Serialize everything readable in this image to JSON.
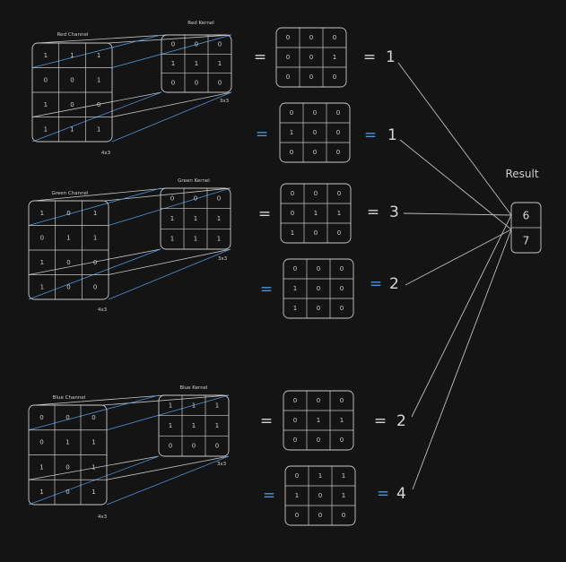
{
  "channels": [
    {
      "name": "red",
      "channel_label": "Red Channel",
      "kernel_label": "Red Kernel",
      "channel_size": "4x3",
      "kernel_size": "3x3",
      "input": [
        [
          "1",
          "1",
          "1"
        ],
        [
          "0",
          "0",
          "1"
        ],
        [
          "1",
          "0",
          "0"
        ],
        [
          "1",
          "1",
          "1"
        ]
      ],
      "kernel": [
        [
          "0",
          "0",
          "0"
        ],
        [
          "1",
          "1",
          "1"
        ],
        [
          "0",
          "0",
          "0"
        ]
      ],
      "products": [
        {
          "sign": "=",
          "sign_color": "white",
          "grid": [
            [
              "0",
              "0",
              "0"
            ],
            [
              "0",
              "0",
              "1"
            ],
            [
              "0",
              "0",
              "0"
            ]
          ],
          "result": "1"
        },
        {
          "sign": "=",
          "sign_color": "blue",
          "grid": [
            [
              "0",
              "0",
              "0"
            ],
            [
              "1",
              "0",
              "0"
            ],
            [
              "0",
              "0",
              "0"
            ]
          ],
          "result": "1"
        }
      ]
    },
    {
      "name": "green",
      "channel_label": "Green Channel",
      "kernel_label": "Green Kernel",
      "channel_size": "4x3",
      "kernel_size": "3x3",
      "input": [
        [
          "1",
          "0",
          "1"
        ],
        [
          "0",
          "1",
          "1"
        ],
        [
          "1",
          "0",
          "0"
        ],
        [
          "1",
          "0",
          "0"
        ]
      ],
      "kernel": [
        [
          "0",
          "0",
          "0"
        ],
        [
          "1",
          "1",
          "1"
        ],
        [
          "1",
          "1",
          "1"
        ]
      ],
      "products": [
        {
          "sign": "=",
          "sign_color": "white",
          "grid": [
            [
              "0",
              "0",
              "0"
            ],
            [
              "0",
              "1",
              "1"
            ],
            [
              "1",
              "0",
              "0"
            ]
          ],
          "result": "3"
        },
        {
          "sign": "=",
          "sign_color": "blue",
          "grid": [
            [
              "0",
              "0",
              "0"
            ],
            [
              "1",
              "0",
              "0"
            ],
            [
              "1",
              "0",
              "0"
            ]
          ],
          "result": "2"
        }
      ]
    },
    {
      "name": "blue",
      "channel_label": "Blue Channel",
      "kernel_label": "Blue Kernel",
      "channel_size": "4x3",
      "kernel_size": "3x3",
      "input": [
        [
          "0",
          "0",
          "0"
        ],
        [
          "0",
          "1",
          "1"
        ],
        [
          "1",
          "0",
          "1"
        ],
        [
          "1",
          "0",
          "1"
        ]
      ],
      "kernel": [
        [
          "1",
          "1",
          "1"
        ],
        [
          "1",
          "1",
          "1"
        ],
        [
          "0",
          "0",
          "0"
        ]
      ],
      "products": [
        {
          "sign": "=",
          "sign_color": "white",
          "grid": [
            [
              "0",
              "0",
              "0"
            ],
            [
              "0",
              "1",
              "1"
            ],
            [
              "0",
              "0",
              "0"
            ]
          ],
          "result": "2"
        },
        {
          "sign": "=",
          "sign_color": "blue",
          "grid": [
            [
              "0",
              "1",
              "1"
            ],
            [
              "1",
              "0",
              "1"
            ],
            [
              "0",
              "0",
              "0"
            ]
          ],
          "result": "4"
        }
      ]
    }
  ],
  "result": {
    "title": "Result",
    "values": [
      "6",
      "7"
    ]
  },
  "colors": {
    "background": "#141414",
    "grid_stroke": "#c8c8c8",
    "blue_accent": "#4c93d8",
    "text": "#cfcfcf"
  }
}
